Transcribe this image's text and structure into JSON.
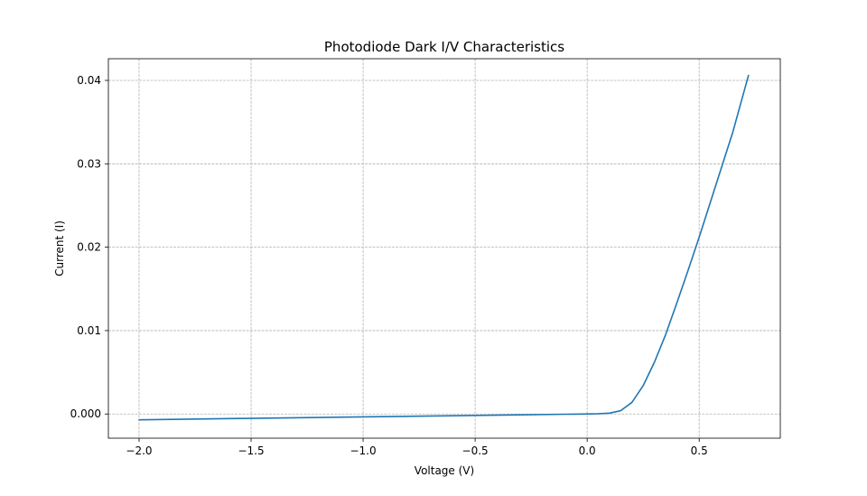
{
  "chart_data": {
    "type": "line",
    "title": "Photodiode Dark I/V Characteristics",
    "xlabel": "Voltage (V)",
    "ylabel": "Current (I)",
    "xlim": [
      -2.137,
      0.862
    ],
    "ylim": [
      -0.0029,
      0.0426
    ],
    "grid": true,
    "x_ticks": [
      -2.0,
      -1.5,
      -1.0,
      -0.5,
      0.0,
      0.5
    ],
    "x_tick_labels": [
      "−2.0",
      "−1.5",
      "−1.0",
      "−0.5",
      "0.0",
      "0.5"
    ],
    "y_ticks": [
      0.0,
      0.01,
      0.02,
      0.03,
      0.04
    ],
    "y_tick_labels": [
      "0.000",
      "0.01",
      "0.02",
      "0.03",
      "0.04"
    ],
    "series": [
      {
        "color": "#1f77b4",
        "x": [
          -2.0,
          -1.5,
          -1.0,
          -0.5,
          -0.3,
          -0.1,
          0.0,
          0.05,
          0.1,
          0.15,
          0.2,
          0.25,
          0.3,
          0.35,
          0.4,
          0.45,
          0.5,
          0.55,
          0.6,
          0.65,
          0.72
        ],
        "y": [
          -0.0007,
          -0.00052,
          -0.00035,
          -0.00017,
          -0.0001,
          -3e-05,
          0.0,
          3e-05,
          0.0001,
          0.0004,
          0.0014,
          0.0034,
          0.0062,
          0.0095,
          0.0133,
          0.0172,
          0.0212,
          0.0254,
          0.0296,
          0.0338,
          0.0406
        ]
      }
    ]
  }
}
